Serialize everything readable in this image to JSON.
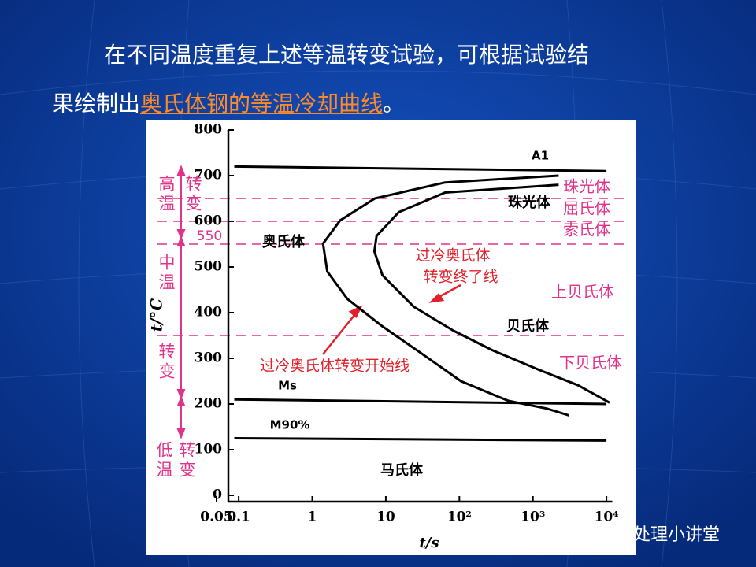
{
  "slide": {
    "line1": "在不同温度重复上述等温转变试验，可根据试验结",
    "line2_before": "果绘制出",
    "line2_link": "奥氏体钢的等温冷却曲线",
    "line2_after": "。"
  },
  "watermark": "热处理小讲堂",
  "chart_data": {
    "type": "line",
    "x_label": "t/s",
    "y_label": "t/°C",
    "xscale": "log",
    "xlim": [
      0.05,
      12000
    ],
    "xticks": [
      0.05,
      0.1,
      1,
      10,
      {
        "value": 100,
        "label": "10²"
      },
      {
        "value": 1000,
        "label": "10³"
      },
      {
        "value": 10000,
        "label": "10⁴"
      }
    ],
    "ylim": [
      0,
      800
    ],
    "yticks": [
      0,
      100,
      200,
      300,
      400,
      500,
      600,
      700,
      800
    ],
    "series": [
      {
        "name": "过冷奥氏体转变开始线",
        "color": "#000000",
        "x": [
          2240,
          64,
          7.1,
          2.4,
          1.4,
          1.6,
          3,
          9,
          31,
          105,
          460,
          1550,
          3100
        ],
        "values": [
          700,
          685,
          650,
          602,
          551,
          490,
          430,
          370,
          310,
          250,
          207,
          190,
          175
        ]
      },
      {
        "name": "过冷奥氏体转变终了线",
        "color": "#000000",
        "x": [
          2240,
          64,
          15,
          7.5,
          7,
          9,
          24,
          82,
          280,
          1200,
          4100,
          11000
        ],
        "values": [
          680,
          663,
          620,
          568,
          534,
          482,
          413,
          361,
          318,
          275,
          241,
          203
        ]
      },
      {
        "name": "A1",
        "color": "#000000",
        "x": [
          0.087,
          10000
        ],
        "values": [
          720,
          710
        ]
      },
      {
        "name": "Ms",
        "color": "#000000",
        "x": [
          0.087,
          10000
        ],
        "values": [
          210,
          200
        ]
      },
      {
        "name": "M90%",
        "color": "#000000",
        "x": [
          0.087,
          10000
        ],
        "values": [
          125,
          120
        ]
      }
    ],
    "reference_lines": [
      650,
      600,
      550,
      350
    ],
    "reference_color": "#e0338a",
    "phase_labels": [
      "奥氏体",
      "珠光体",
      "贝氏体",
      "马氏体"
    ],
    "curve_labels": [
      "过冷奥氏体转变开始线",
      "过冷奥氏体",
      "转变终了线"
    ],
    "product_labels": [
      "珠光体",
      "屈氏体",
      "索氏体",
      "上贝氏体",
      "下贝氏体"
    ],
    "zone_labels": [
      "高温",
      "转变",
      "中温",
      "转变",
      "低温",
      "转变"
    ],
    "marked_temperature": "550"
  }
}
